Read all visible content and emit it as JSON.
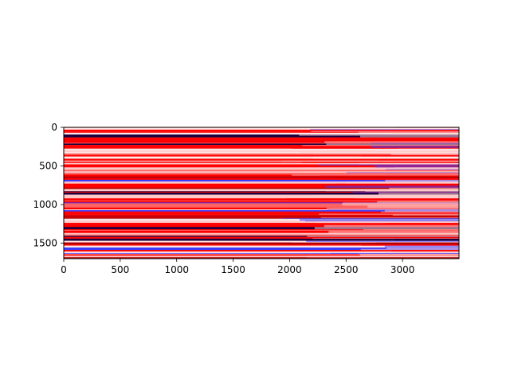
{
  "chart_data": {
    "type": "heatmap",
    "title": "",
    "xlabel": "",
    "ylabel": "",
    "xlim": [
      0,
      3500
    ],
    "ylim": [
      1700,
      0
    ],
    "x_ticks": [
      0,
      500,
      1000,
      1500,
      2000,
      2500,
      3000
    ],
    "y_ticks": [
      0,
      500,
      1000,
      1500
    ],
    "x_tick_labels": [
      "0",
      "500",
      "1000",
      "1500",
      "2000",
      "2500",
      "3000"
    ],
    "y_tick_labels": [
      "0",
      "500",
      "1000",
      "1500"
    ],
    "rows": 1700,
    "cols": 3500,
    "colormap": "bwr",
    "grid": false,
    "legend": "none",
    "colors": {
      "dominant": "#ff0000",
      "light": "#ffc8c8",
      "negative": "#3c3cff",
      "dark": "#1a0040"
    }
  }
}
